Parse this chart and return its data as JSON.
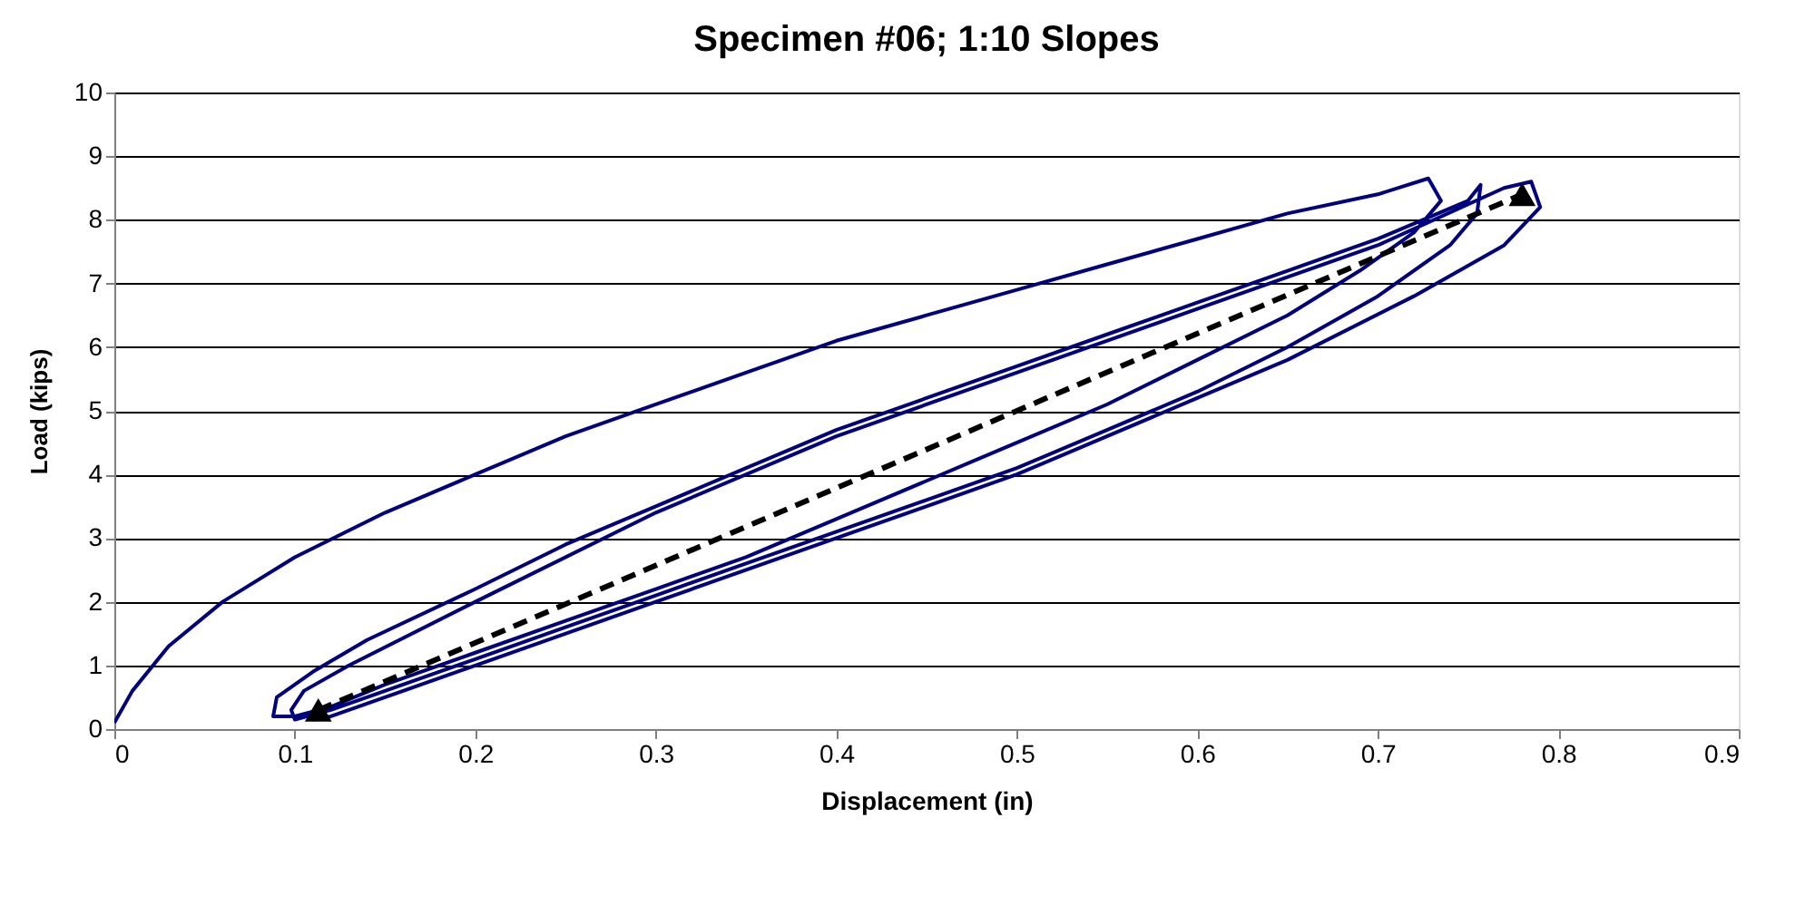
{
  "chart_data": {
    "type": "line",
    "title": "Specimen #06; 1:10 Slopes",
    "xlabel": "Displacement (in)",
    "ylabel": "Load (kips)",
    "xlim": [
      0,
      0.9
    ],
    "xticks": [
      0,
      0.1,
      0.2,
      0.3,
      0.4,
      0.5,
      0.6,
      0.7,
      0.8,
      0.9
    ],
    "ylim": [
      0,
      10
    ],
    "yticks": [
      0,
      1,
      2,
      3,
      4,
      5,
      6,
      7,
      8,
      9,
      10
    ],
    "grid": "y",
    "series": [
      {
        "color": "#000080",
        "line_style": "solid",
        "marker": "none",
        "x": [
          0,
          0.01,
          0.03,
          0.06,
          0.1,
          0.15,
          0.2,
          0.25,
          0.3,
          0.35,
          0.4,
          0.45,
          0.5,
          0.55,
          0.6,
          0.65,
          0.7,
          0.728,
          0.735,
          0.72,
          0.69,
          0.65,
          0.6,
          0.55,
          0.5,
          0.45,
          0.4,
          0.35,
          0.3,
          0.25,
          0.2,
          0.15,
          0.12,
          0.1,
          0.088,
          0.09,
          0.11,
          0.14,
          0.2,
          0.25,
          0.3,
          0.35,
          0.4,
          0.45,
          0.5,
          0.55,
          0.6,
          0.65,
          0.7,
          0.75,
          0.757,
          0.755,
          0.74,
          0.7,
          0.65,
          0.6,
          0.55,
          0.5,
          0.45,
          0.4,
          0.35,
          0.3,
          0.25,
          0.2,
          0.15,
          0.12,
          0.1,
          0.098,
          0.105,
          0.13,
          0.2,
          0.3,
          0.4,
          0.5,
          0.6,
          0.7,
          0.77,
          0.785,
          0.79,
          0.77,
          0.72,
          0.65,
          0.6,
          0.5,
          0.4,
          0.3,
          0.2,
          0.15,
          0.12,
          0.11
        ],
        "values": [
          0.1,
          0.6,
          1.3,
          2.0,
          2.7,
          3.4,
          4.0,
          4.6,
          5.1,
          5.6,
          6.1,
          6.5,
          6.9,
          7.3,
          7.7,
          8.1,
          8.4,
          8.65,
          8.3,
          7.8,
          7.2,
          6.5,
          5.8,
          5.1,
          4.5,
          3.9,
          3.3,
          2.7,
          2.2,
          1.7,
          1.2,
          0.7,
          0.35,
          0.2,
          0.2,
          0.5,
          0.9,
          1.4,
          2.2,
          2.9,
          3.5,
          4.1,
          4.7,
          5.2,
          5.7,
          6.2,
          6.7,
          7.2,
          7.7,
          8.3,
          8.55,
          8.1,
          7.6,
          6.8,
          6.0,
          5.3,
          4.7,
          4.1,
          3.6,
          3.1,
          2.6,
          2.1,
          1.6,
          1.1,
          0.6,
          0.3,
          0.15,
          0.3,
          0.6,
          1.0,
          2.0,
          3.4,
          4.6,
          5.6,
          6.6,
          7.6,
          8.5,
          8.6,
          8.2,
          7.6,
          6.8,
          5.8,
          5.2,
          4.0,
          3.0,
          2.0,
          1.0,
          0.5,
          0.2,
          0.15
        ]
      },
      {
        "color": "#000000",
        "line_style": "dashed",
        "marker": "triangle",
        "x": [
          0.113,
          0.78
        ],
        "values": [
          0.3,
          8.4
        ]
      }
    ]
  }
}
